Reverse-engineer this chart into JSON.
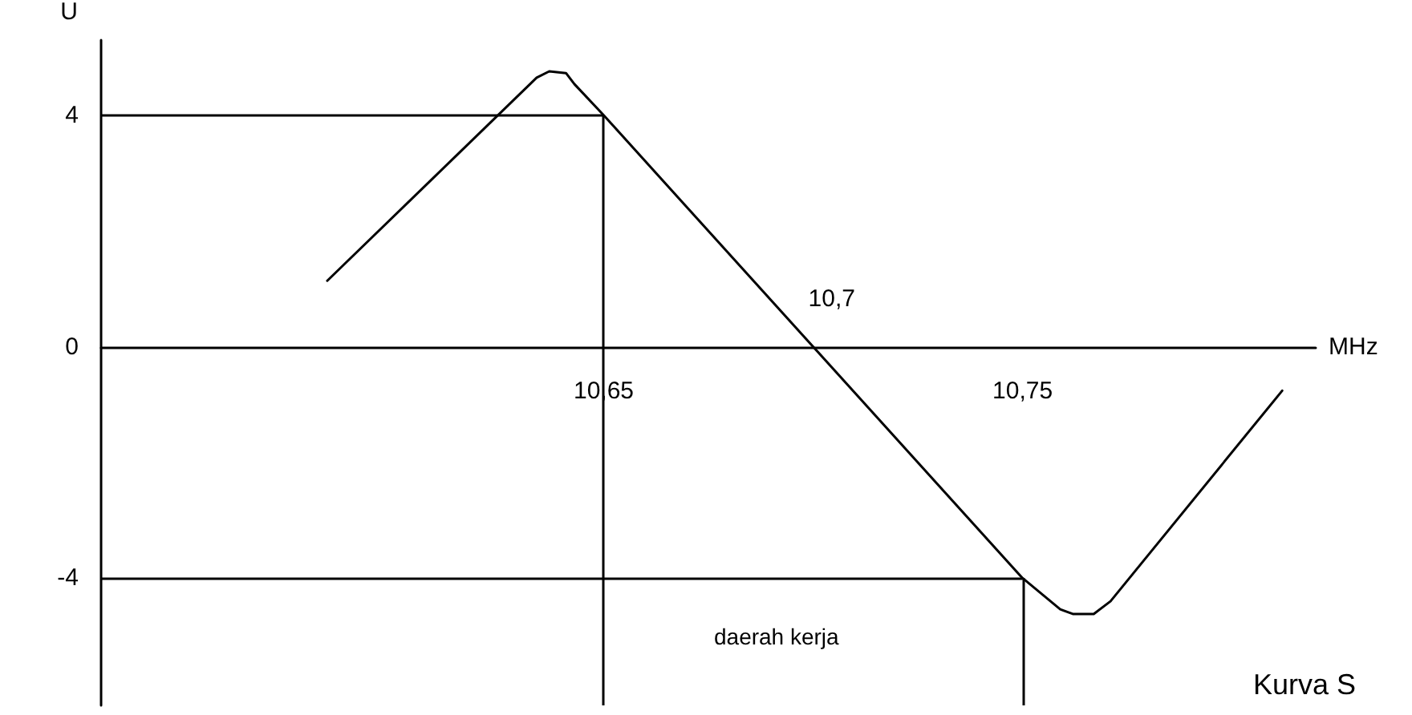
{
  "chart_data": {
    "type": "line",
    "xlabel": "MHz",
    "ylabel": "U",
    "x": [
      10.584,
      10.634,
      10.637,
      10.641,
      10.643,
      10.65,
      10.75,
      10.759,
      10.762,
      10.767,
      10.771,
      10.812
    ],
    "series": [
      {
        "color": "#000000",
        "values": [
          1.14,
          4.65,
          4.76,
          4.73,
          4.54,
          4,
          -4,
          -4.54,
          -4.62,
          -4.62,
          -4.4,
          -0.76
        ]
      }
    ],
    "xlim": [
      10.53,
      10.82
    ],
    "xticks": [
      {
        "value": 10.65,
        "label": "10,65"
      },
      {
        "value": 10.75,
        "label": "10,75"
      }
    ],
    "ylim": [
      -6.2,
      5.3
    ],
    "yticks": [
      -4,
      0,
      4
    ],
    "ref_lines": [
      {
        "axis": "x",
        "value": 10.65
      },
      {
        "axis": "x",
        "value": 10.75
      },
      {
        "axis": "y",
        "value": 4
      },
      {
        "axis": "y",
        "value": -4
      }
    ],
    "annotations": [
      {
        "text": "10,7",
        "x": 10.7,
        "y": 0
      },
      "daerah kerja",
      "Kurva S"
    ],
    "marker": "none",
    "line_style": "solid"
  }
}
